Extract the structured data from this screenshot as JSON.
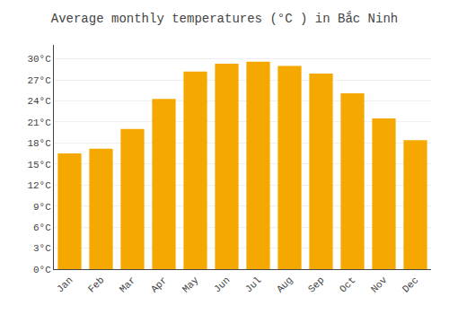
{
  "chart_data": {
    "type": "bar",
    "title": "Average monthly temperatures (°C ) in Bắc Ninh",
    "categories": [
      "Jan",
      "Feb",
      "Mar",
      "Apr",
      "May",
      "Jun",
      "Jul",
      "Aug",
      "Sep",
      "Oct",
      "Nov",
      "Dec"
    ],
    "values": [
      16.5,
      17.2,
      20.0,
      24.3,
      28.2,
      29.3,
      29.6,
      29.0,
      27.9,
      25.1,
      21.5,
      18.4
    ],
    "color": "#F5A800",
    "ylim": [
      0,
      32
    ],
    "yticks": [
      {
        "value": 0,
        "label": "0°C"
      },
      {
        "value": 3,
        "label": "3°C"
      },
      {
        "value": 6,
        "label": "6°C"
      },
      {
        "value": 9,
        "label": "9°C"
      },
      {
        "value": 12,
        "label": "12°C"
      },
      {
        "value": 15,
        "label": "15°C"
      },
      {
        "value": 18,
        "label": "18°C"
      },
      {
        "value": 21,
        "label": "21°C"
      },
      {
        "value": 24,
        "label": "24°C"
      },
      {
        "value": 27,
        "label": "27°C"
      },
      {
        "value": 30,
        "label": "30°C"
      }
    ],
    "grid": true
  }
}
